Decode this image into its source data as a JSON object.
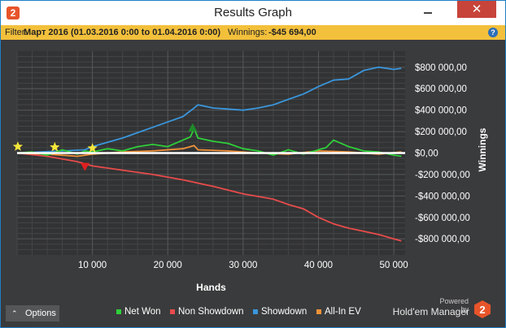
{
  "window": {
    "title": "Results Graph",
    "app_icon_glyph": "2",
    "close_glyph": "✕"
  },
  "filter": {
    "label": "Filter:",
    "value": "Март 2016 (01.03.2016 0:00 to 01.04.2016 0:00)",
    "winnings_label": "Winnings:",
    "winnings_value": "-$45 694,00",
    "help_glyph": "?"
  },
  "chart_data": {
    "type": "line",
    "xlabel": "Hands",
    "ylabel": "Winnings",
    "xlim": [
      0,
      51500
    ],
    "ylim": [
      -950000,
      950000
    ],
    "x_ticks": [
      10000,
      20000,
      30000,
      40000,
      50000
    ],
    "x_tick_labels": [
      "10 000",
      "20 000",
      "30 000",
      "40 000",
      "50 000"
    ],
    "y_ticks": [
      800000,
      600000,
      400000,
      200000,
      0,
      -200000,
      -400000,
      -600000,
      -800000
    ],
    "y_tick_labels": [
      "$800 000,00",
      "$600 000,00",
      "$400 000,00",
      "$200 000,00",
      "$0,00",
      "-$200 000,00",
      "-$400 000,00",
      "-$600 000,00",
      "-$800 000,00"
    ],
    "grid": true,
    "legend_position": "bottom",
    "colors": {
      "background": "#3a3b3c",
      "grid": "#4c4d4e",
      "zero_line": "#ffffff"
    },
    "series": [
      {
        "name": "Net Won",
        "color": "#2fcf3a",
        "x": [
          0,
          2000,
          4000,
          6000,
          8000,
          9000,
          10000,
          12000,
          14000,
          16000,
          18000,
          20000,
          21000,
          22000,
          23000,
          23500,
          24000,
          26000,
          28000,
          30000,
          32000,
          34000,
          36000,
          38000,
          40000,
          41000,
          42000,
          44000,
          46000,
          48000,
          50000,
          51000
        ],
        "y": [
          0,
          10000,
          -20000,
          30000,
          -10000,
          20000,
          10000,
          40000,
          20000,
          60000,
          80000,
          60000,
          90000,
          120000,
          150000,
          230000,
          140000,
          110000,
          90000,
          40000,
          20000,
          -20000,
          30000,
          -10000,
          30000,
          50000,
          120000,
          60000,
          20000,
          10000,
          -20000,
          -30000
        ]
      },
      {
        "name": "Non Showdown",
        "color": "#e84b4b",
        "x": [
          0,
          4000,
          8000,
          10000,
          14000,
          18000,
          22000,
          26000,
          30000,
          34000,
          36000,
          38000,
          40000,
          42000,
          44000,
          46000,
          48000,
          50000,
          51000
        ],
        "y": [
          0,
          -30000,
          -80000,
          -120000,
          -160000,
          -200000,
          -250000,
          -310000,
          -380000,
          -430000,
          -480000,
          -520000,
          -600000,
          -660000,
          -700000,
          -730000,
          -760000,
          -800000,
          -820000
        ]
      },
      {
        "name": "Showdown",
        "color": "#3a96dc",
        "x": [
          0,
          3000,
          6000,
          9000,
          10000,
          12000,
          14000,
          16000,
          18000,
          20000,
          22000,
          23500,
          24000,
          26000,
          28000,
          30000,
          32000,
          34000,
          36000,
          38000,
          40000,
          42000,
          44000,
          46000,
          48000,
          50000,
          51000
        ],
        "y": [
          0,
          10000,
          20000,
          30000,
          60000,
          100000,
          140000,
          190000,
          240000,
          290000,
          340000,
          420000,
          450000,
          420000,
          410000,
          400000,
          420000,
          450000,
          500000,
          550000,
          620000,
          680000,
          690000,
          770000,
          800000,
          780000,
          790000
        ]
      },
      {
        "name": "All-In EV",
        "color": "#f0923a",
        "x": [
          0,
          4000,
          8000,
          10000,
          14000,
          18000,
          22000,
          23500,
          24000,
          28000,
          32000,
          36000,
          40000,
          44000,
          48000,
          51000
        ],
        "y": [
          0,
          -10000,
          -30000,
          -10000,
          10000,
          20000,
          40000,
          70000,
          30000,
          20000,
          0,
          -10000,
          20000,
          10000,
          -10000,
          10000
        ]
      }
    ],
    "markers": [
      {
        "kind": "star",
        "color": "#f5e63a",
        "x": 100,
        "y": 60000
      },
      {
        "kind": "star",
        "color": "#f5e63a",
        "x": 5000,
        "y": 55000
      },
      {
        "kind": "star",
        "color": "#f5e63a",
        "x": 10000,
        "y": 45000
      },
      {
        "kind": "triangle-down",
        "color": "#e02020",
        "x": 9000,
        "y": -130000
      },
      {
        "kind": "triangle-up",
        "color": "#1f8a2a",
        "x": 23300,
        "y": 240000
      }
    ]
  },
  "footer": {
    "options_label": "Options",
    "options_glyph": "⌃",
    "legend": [
      {
        "label": "Net Won",
        "color": "#2fcf3a"
      },
      {
        "label": "Non Showdown",
        "color": "#e84b4b"
      },
      {
        "label": "Showdown",
        "color": "#3a96dc"
      },
      {
        "label": "All-In EV",
        "color": "#f0923a"
      }
    ],
    "powered_by": "Powered by",
    "brand": "Hold'em Manager",
    "brand_logo_glyph": "2",
    "brand_color": "#e8542a"
  }
}
